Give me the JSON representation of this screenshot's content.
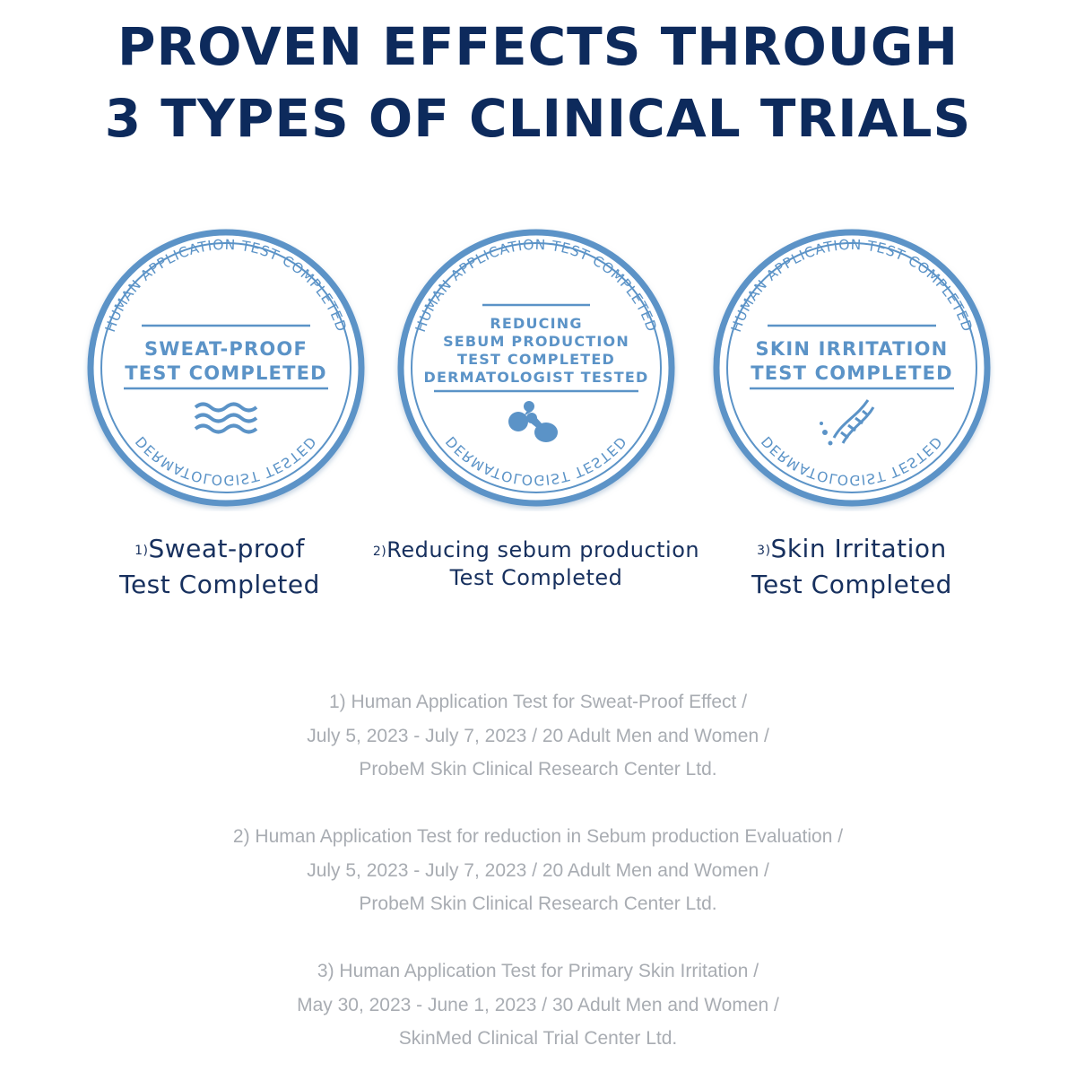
{
  "title_lines": [
    "PROVEN EFFECTS THROUGH",
    "3 TYPES OF CLINICAL TRIALS"
  ],
  "colors": {
    "title": "#0d2a5c",
    "badge": "#5b93c7",
    "caption": "#17305e",
    "notes": "#a8acb2"
  },
  "badges": [
    {
      "arc_top": "HUMAN APPLICATION TEST COMPLETED",
      "arc_bottom": "DERMATOLOGIST TESTED",
      "center_lines": [
        "SWEAT-PROOF",
        "TEST COMPLETED"
      ],
      "icon": "waves-icon",
      "caption": {
        "marker": "1)",
        "line1": "Sweat-proof",
        "line2": "Test Completed"
      }
    },
    {
      "arc_top": "HUMAN APPLICATION TEST COMPLETED",
      "arc_bottom": "DERMATOLOGIST TESTED",
      "center_lines": [
        "REDUCING",
        "SEBUM PRODUCTION",
        "TEST COMPLETED",
        "DERMATOLOGIST TESTED"
      ],
      "icon": "molecule-icon",
      "caption": {
        "marker": "2)",
        "line1": "Reducing sebum production",
        "line2": "Test Completed"
      }
    },
    {
      "arc_top": "HUMAN APPLICATION TEST COMPLETED",
      "arc_bottom": "DERMATOLOGIST TESTED",
      "center_lines": [
        "SKIN IRRITATION",
        "TEST COMPLETED"
      ],
      "icon": "dna-icon",
      "caption": {
        "marker": "3)",
        "line1": "Skin Irritation",
        "line2": "Test Completed"
      }
    }
  ],
  "notes": [
    [
      "1) Human Application Test for Sweat-Proof Effect /",
      "July 5, 2023 - July 7, 2023 / 20 Adult Men and Women /",
      "ProbeM Skin Clinical Research Center Ltd."
    ],
    [
      "2) Human Application Test for reduction in Sebum production Evaluation /",
      "July 5, 2023 - July 7, 2023 / 20 Adult Men and Women /",
      "ProbeM Skin Clinical Research Center Ltd."
    ],
    [
      "3) Human Application Test for Primary Skin Irritation /",
      "May 30, 2023 - June 1, 2023 / 30 Adult Men and Women /",
      "SkinMed Clinical Trial Center Ltd."
    ]
  ]
}
